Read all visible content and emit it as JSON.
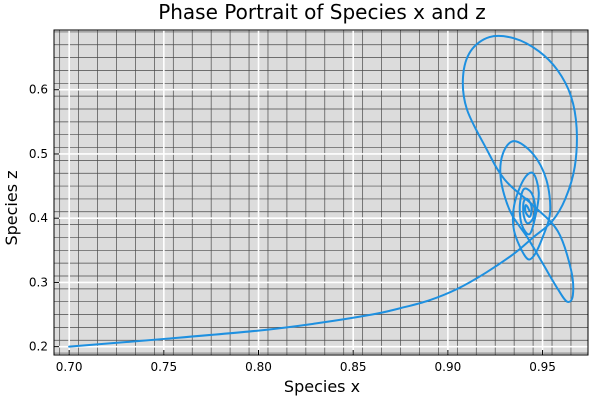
{
  "chart_data": {
    "type": "line",
    "title": "Phase Portrait of Species x and z",
    "xlabel": "Species x",
    "ylabel": "Species z",
    "xlim": [
      0.692,
      0.974
    ],
    "ylim": [
      0.187,
      0.693
    ],
    "xticks": [
      "0.70",
      "0.75",
      "0.80",
      "0.85",
      "0.90",
      "0.95"
    ],
    "xtick_values": [
      0.7,
      0.75,
      0.8,
      0.85,
      0.9,
      0.95
    ],
    "yticks": [
      "0.2",
      "0.3",
      "0.4",
      "0.5",
      "0.6"
    ],
    "ytick_values": [
      0.2,
      0.3,
      0.4,
      0.5,
      0.6
    ],
    "grid": true,
    "minor_grid": true,
    "legend": "none",
    "background_color": "#dcdcdc",
    "series": [
      {
        "color": "#1e90e0",
        "x": [
          0.7,
          0.75,
          0.8,
          0.83,
          0.86,
          0.875,
          0.89,
          0.905,
          0.92,
          0.935,
          0.945,
          0.955,
          0.962,
          0.967,
          0.968,
          0.965,
          0.958,
          0.948,
          0.935,
          0.922,
          0.912,
          0.908,
          0.91,
          0.92,
          0.93,
          0.945,
          0.958,
          0.965,
          0.966,
          0.963,
          0.958,
          0.95,
          0.942,
          0.933,
          0.928,
          0.929,
          0.935,
          0.945,
          0.952,
          0.954,
          0.95,
          0.945,
          0.941,
          0.935,
          0.935,
          0.94,
          0.945,
          0.948,
          0.946,
          0.943,
          0.939,
          0.938,
          0.94,
          0.944,
          0.946,
          0.945,
          0.942,
          0.94,
          0.94,
          0.942,
          0.944,
          0.944,
          0.943,
          0.941,
          0.941,
          0.942,
          0.943
        ],
        "y": [
          0.2,
          0.212,
          0.225,
          0.236,
          0.25,
          0.26,
          0.272,
          0.29,
          0.315,
          0.345,
          0.37,
          0.395,
          0.43,
          0.48,
          0.54,
          0.59,
          0.63,
          0.66,
          0.68,
          0.682,
          0.66,
          0.62,
          0.57,
          0.51,
          0.46,
          0.42,
          0.38,
          0.32,
          0.28,
          0.27,
          0.29,
          0.33,
          0.37,
          0.41,
          0.46,
          0.5,
          0.52,
          0.5,
          0.46,
          0.41,
          0.37,
          0.34,
          0.34,
          0.38,
          0.42,
          0.46,
          0.47,
          0.44,
          0.4,
          0.375,
          0.39,
          0.42,
          0.445,
          0.44,
          0.42,
          0.4,
          0.392,
          0.405,
          0.425,
          0.43,
          0.42,
          0.408,
          0.402,
          0.41,
          0.42,
          0.418,
          0.412
        ]
      }
    ]
  }
}
